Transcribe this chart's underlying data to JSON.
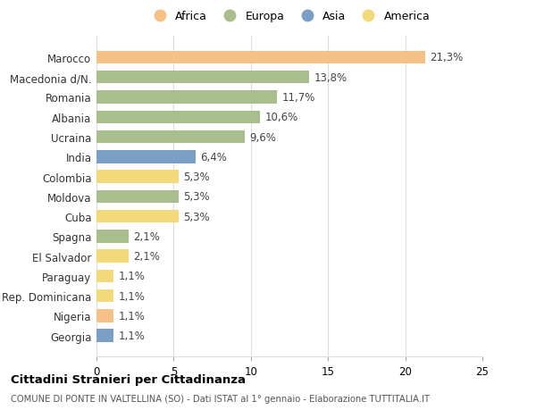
{
  "countries": [
    "Marocco",
    "Macedonia d/N.",
    "Romania",
    "Albania",
    "Ucraina",
    "India",
    "Colombia",
    "Moldova",
    "Cuba",
    "Spagna",
    "El Salvador",
    "Paraguay",
    "Rep. Dominicana",
    "Nigeria",
    "Georgia"
  ],
  "values": [
    21.3,
    13.8,
    11.7,
    10.6,
    9.6,
    6.4,
    5.3,
    5.3,
    5.3,
    2.1,
    2.1,
    1.1,
    1.1,
    1.1,
    1.1
  ],
  "labels": [
    "21,3%",
    "13,8%",
    "11,7%",
    "10,6%",
    "9,6%",
    "6,4%",
    "5,3%",
    "5,3%",
    "5,3%",
    "2,1%",
    "2,1%",
    "1,1%",
    "1,1%",
    "1,1%",
    "1,1%"
  ],
  "bar_colors": [
    "#F5C186",
    "#A8BE8C",
    "#A8BE8C",
    "#A8BE8C",
    "#A8BE8C",
    "#7B9FC4",
    "#F2D97A",
    "#A8BE8C",
    "#F2D97A",
    "#A8BE8C",
    "#F2D97A",
    "#F2D97A",
    "#F2D97A",
    "#F5C186",
    "#7B9FC4"
  ],
  "title": "Cittadini Stranieri per Cittadinanza",
  "subtitle": "COMUNE DI PONTE IN VALTELLINA (SO) - Dati ISTAT al 1° gennaio - Elaborazione TUTTITALIA.IT",
  "xlim": [
    0,
    25
  ],
  "xticks": [
    0,
    5,
    10,
    15,
    20,
    25
  ],
  "legend_labels": [
    "Africa",
    "Europa",
    "Asia",
    "America"
  ],
  "legend_colors": [
    "#F5C186",
    "#A8BE8C",
    "#7B9FC4",
    "#F2D97A"
  ],
  "background_color": "#ffffff",
  "grid_color": "#dddddd",
  "bar_label_color": "#444444",
  "label_fontsize": 8.5,
  "tick_fontsize": 8.5
}
